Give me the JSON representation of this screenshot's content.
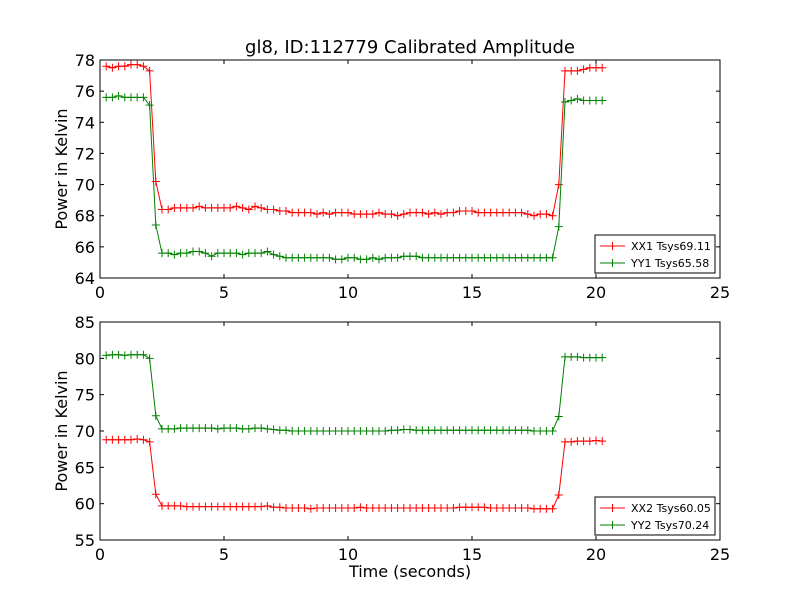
{
  "title": "gl8, ID:112779 Calibrated Amplitude",
  "colors": {
    "red": "#ff0000",
    "green": "#008000",
    "axes": "#000000",
    "background": "#ffffff"
  },
  "chart_data": [
    {
      "type": "line",
      "title": "gl8, ID:112779 Calibrated Amplitude",
      "xlabel": "",
      "ylabel": "Power in Kelvin",
      "xlim": [
        0,
        25
      ],
      "ylim": [
        64,
        78
      ],
      "xticks": [
        0,
        5,
        10,
        15,
        20,
        25
      ],
      "yticks": [
        64,
        66,
        68,
        70,
        72,
        74,
        76,
        78
      ],
      "grid": false,
      "legend_position": "lower-right",
      "series": [
        {
          "name": "XX1 Tsys69.11",
          "color": "#ff0000",
          "marker": "+",
          "x": [
            0.25,
            0.5,
            0.75,
            1.0,
            1.25,
            1.5,
            1.75,
            2.0,
            2.25,
            2.5,
            2.75,
            3.0,
            3.25,
            3.5,
            3.75,
            4.0,
            4.25,
            4.5,
            4.75,
            5.0,
            5.25,
            5.5,
            5.75,
            6.0,
            6.25,
            6.5,
            6.75,
            7.0,
            7.25,
            7.5,
            7.75,
            8.0,
            8.25,
            8.5,
            8.75,
            9.0,
            9.25,
            9.5,
            9.75,
            10.0,
            10.25,
            10.5,
            10.75,
            11.0,
            11.25,
            11.5,
            11.75,
            12.0,
            12.25,
            12.5,
            12.75,
            13.0,
            13.25,
            13.5,
            13.75,
            14.0,
            14.25,
            14.5,
            14.75,
            15.0,
            15.25,
            15.5,
            15.75,
            16.0,
            16.25,
            16.5,
            16.75,
            17.0,
            17.25,
            17.5,
            17.75,
            18.0,
            18.25,
            18.5,
            18.75,
            19.0,
            19.25,
            19.5,
            19.75,
            20.0,
            20.25
          ],
          "y": [
            77.6,
            77.5,
            77.6,
            77.6,
            77.7,
            77.7,
            77.6,
            77.3,
            70.2,
            68.4,
            68.4,
            68.5,
            68.5,
            68.5,
            68.5,
            68.6,
            68.5,
            68.5,
            68.5,
            68.5,
            68.5,
            68.6,
            68.5,
            68.4,
            68.6,
            68.5,
            68.4,
            68.4,
            68.3,
            68.3,
            68.2,
            68.2,
            68.2,
            68.2,
            68.1,
            68.2,
            68.1,
            68.2,
            68.2,
            68.2,
            68.1,
            68.1,
            68.1,
            68.1,
            68.2,
            68.1,
            68.1,
            68.0,
            68.1,
            68.2,
            68.2,
            68.2,
            68.1,
            68.2,
            68.1,
            68.2,
            68.2,
            68.3,
            68.3,
            68.3,
            68.2,
            68.2,
            68.2,
            68.2,
            68.2,
            68.2,
            68.2,
            68.2,
            68.1,
            68.0,
            68.1,
            68.1,
            68.0,
            70.0,
            77.3,
            77.3,
            77.3,
            77.4,
            77.5,
            77.5,
            77.5
          ]
        },
        {
          "name": "YY1 Tsys65.58",
          "color": "#008000",
          "marker": "+",
          "x": [
            0.25,
            0.5,
            0.75,
            1.0,
            1.25,
            1.5,
            1.75,
            2.0,
            2.25,
            2.5,
            2.75,
            3.0,
            3.25,
            3.5,
            3.75,
            4.0,
            4.25,
            4.5,
            4.75,
            5.0,
            5.25,
            5.5,
            5.75,
            6.0,
            6.25,
            6.5,
            6.75,
            7.0,
            7.25,
            7.5,
            7.75,
            8.0,
            8.25,
            8.5,
            8.75,
            9.0,
            9.25,
            9.5,
            9.75,
            10.0,
            10.25,
            10.5,
            10.75,
            11.0,
            11.25,
            11.5,
            11.75,
            12.0,
            12.25,
            12.5,
            12.75,
            13.0,
            13.25,
            13.5,
            13.75,
            14.0,
            14.25,
            14.5,
            14.75,
            15.0,
            15.25,
            15.5,
            15.75,
            16.0,
            16.25,
            16.5,
            16.75,
            17.0,
            17.25,
            17.5,
            17.75,
            18.0,
            18.25,
            18.5,
            18.75,
            19.0,
            19.25,
            19.5,
            19.75,
            20.0,
            20.25
          ],
          "y": [
            75.6,
            75.6,
            75.7,
            75.6,
            75.6,
            75.6,
            75.6,
            75.1,
            67.4,
            65.6,
            65.6,
            65.5,
            65.6,
            65.6,
            65.7,
            65.7,
            65.6,
            65.4,
            65.6,
            65.6,
            65.6,
            65.6,
            65.5,
            65.6,
            65.6,
            65.6,
            65.7,
            65.5,
            65.4,
            65.3,
            65.3,
            65.3,
            65.3,
            65.3,
            65.3,
            65.3,
            65.3,
            65.2,
            65.2,
            65.3,
            65.3,
            65.2,
            65.2,
            65.3,
            65.2,
            65.3,
            65.3,
            65.3,
            65.4,
            65.4,
            65.4,
            65.3,
            65.3,
            65.3,
            65.3,
            65.3,
            65.3,
            65.3,
            65.3,
            65.3,
            65.3,
            65.3,
            65.3,
            65.3,
            65.3,
            65.3,
            65.3,
            65.3,
            65.3,
            65.3,
            65.3,
            65.3,
            65.3,
            67.3,
            75.3,
            75.4,
            75.5,
            75.4,
            75.4,
            75.4,
            75.4
          ]
        }
      ]
    },
    {
      "type": "line",
      "title": "",
      "xlabel": "Time (seconds)",
      "ylabel": "Power in Kelvin",
      "xlim": [
        0,
        25
      ],
      "ylim": [
        55,
        85
      ],
      "xticks": [
        0,
        5,
        10,
        15,
        20,
        25
      ],
      "yticks": [
        55,
        60,
        65,
        70,
        75,
        80,
        85
      ],
      "grid": false,
      "legend_position": "lower-right",
      "series": [
        {
          "name": "XX2 Tsys60.05",
          "color": "#ff0000",
          "marker": "+",
          "x": [
            0.25,
            0.5,
            0.75,
            1.0,
            1.25,
            1.5,
            1.75,
            2.0,
            2.25,
            2.5,
            2.75,
            3.0,
            3.25,
            3.5,
            3.75,
            4.0,
            4.25,
            4.5,
            4.75,
            5.0,
            5.25,
            5.5,
            5.75,
            6.0,
            6.25,
            6.5,
            6.75,
            7.0,
            7.25,
            7.5,
            7.75,
            8.0,
            8.25,
            8.5,
            8.75,
            9.0,
            9.25,
            9.5,
            9.75,
            10.0,
            10.25,
            10.5,
            10.75,
            11.0,
            11.25,
            11.5,
            11.75,
            12.0,
            12.25,
            12.5,
            12.75,
            13.0,
            13.25,
            13.5,
            13.75,
            14.0,
            14.25,
            14.5,
            14.75,
            15.0,
            15.25,
            15.5,
            15.75,
            16.0,
            16.25,
            16.5,
            16.75,
            17.0,
            17.25,
            17.5,
            17.75,
            18.0,
            18.25,
            18.5,
            18.75,
            19.0,
            19.25,
            19.5,
            19.75,
            20.0,
            20.25
          ],
          "y": [
            68.8,
            68.8,
            68.8,
            68.8,
            68.8,
            68.9,
            68.8,
            68.5,
            61.3,
            59.7,
            59.7,
            59.7,
            59.7,
            59.6,
            59.6,
            59.6,
            59.6,
            59.6,
            59.6,
            59.6,
            59.6,
            59.6,
            59.6,
            59.6,
            59.6,
            59.6,
            59.7,
            59.5,
            59.5,
            59.4,
            59.4,
            59.4,
            59.4,
            59.3,
            59.4,
            59.4,
            59.4,
            59.4,
            59.4,
            59.4,
            59.4,
            59.5,
            59.4,
            59.4,
            59.4,
            59.4,
            59.4,
            59.4,
            59.4,
            59.4,
            59.4,
            59.4,
            59.4,
            59.4,
            59.4,
            59.4,
            59.4,
            59.5,
            59.5,
            59.5,
            59.5,
            59.5,
            59.4,
            59.4,
            59.4,
            59.4,
            59.4,
            59.4,
            59.4,
            59.3,
            59.3,
            59.3,
            59.3,
            61.2,
            68.5,
            68.5,
            68.6,
            68.6,
            68.6,
            68.7,
            68.6
          ]
        },
        {
          "name": "YY2 Tsys70.24",
          "color": "#008000",
          "marker": "+",
          "x": [
            0.25,
            0.5,
            0.75,
            1.0,
            1.25,
            1.5,
            1.75,
            2.0,
            2.25,
            2.5,
            2.75,
            3.0,
            3.25,
            3.5,
            3.75,
            4.0,
            4.25,
            4.5,
            4.75,
            5.0,
            5.25,
            5.5,
            5.75,
            6.0,
            6.25,
            6.5,
            6.75,
            7.0,
            7.25,
            7.5,
            7.75,
            8.0,
            8.25,
            8.5,
            8.75,
            9.0,
            9.25,
            9.5,
            9.75,
            10.0,
            10.25,
            10.5,
            10.75,
            11.0,
            11.25,
            11.5,
            11.75,
            12.0,
            12.25,
            12.5,
            12.75,
            13.0,
            13.25,
            13.5,
            13.75,
            14.0,
            14.25,
            14.5,
            14.75,
            15.0,
            15.25,
            15.5,
            15.75,
            16.0,
            16.25,
            16.5,
            16.75,
            17.0,
            17.25,
            17.5,
            17.75,
            18.0,
            18.25,
            18.5,
            18.75,
            19.0,
            19.25,
            19.5,
            19.75,
            20.0,
            20.25
          ],
          "y": [
            80.4,
            80.5,
            80.5,
            80.4,
            80.5,
            80.5,
            80.5,
            80.0,
            72.1,
            70.3,
            70.3,
            70.3,
            70.4,
            70.4,
            70.4,
            70.4,
            70.4,
            70.4,
            70.3,
            70.4,
            70.4,
            70.4,
            70.3,
            70.3,
            70.4,
            70.4,
            70.3,
            70.2,
            70.1,
            70.1,
            70.0,
            70.0,
            70.0,
            70.0,
            70.0,
            70.0,
            70.0,
            70.0,
            70.0,
            70.0,
            70.0,
            70.0,
            70.0,
            70.0,
            70.0,
            70.0,
            70.1,
            70.1,
            70.2,
            70.2,
            70.1,
            70.1,
            70.1,
            70.1,
            70.1,
            70.1,
            70.1,
            70.1,
            70.1,
            70.1,
            70.1,
            70.1,
            70.1,
            70.1,
            70.1,
            70.1,
            70.1,
            70.1,
            70.1,
            70.0,
            70.0,
            70.0,
            70.0,
            72.0,
            80.2,
            80.2,
            80.2,
            80.1,
            80.1,
            80.1,
            80.1
          ]
        }
      ]
    }
  ]
}
